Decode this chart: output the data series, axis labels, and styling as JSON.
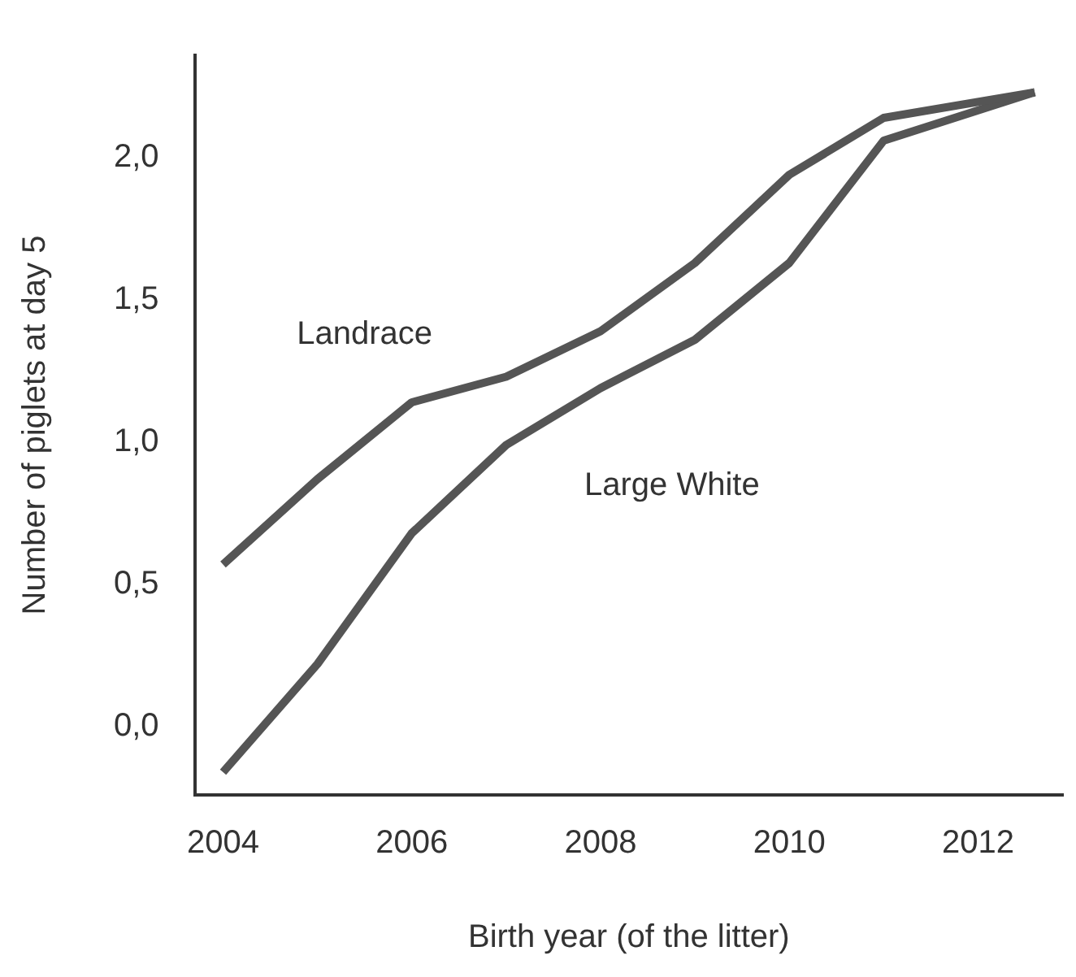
{
  "chart_data": {
    "type": "line",
    "xlabel": "Birth year (of the litter)",
    "ylabel": "Number of piglets at day 5",
    "xlim": [
      2003.7,
      2012.9
    ],
    "xticks": [
      2004,
      2006,
      2008,
      2010,
      2012
    ],
    "ylim": [
      -0.24,
      2.36
    ],
    "yticks": [
      {
        "value": 0,
        "label": "0,0"
      },
      {
        "value": 0.5,
        "label": "0,5"
      },
      {
        "value": 1,
        "label": "1,0"
      },
      {
        "value": 1.5,
        "label": "1,5"
      },
      {
        "value": 2,
        "label": "2,0"
      }
    ],
    "grid": false,
    "legend": false,
    "marker": "none",
    "line_style": "solid",
    "series": [
      {
        "name": "Landrace",
        "color": "#555555",
        "x": [
          2004,
          2005,
          2006,
          2007,
          2008,
          2009,
          2010,
          2011,
          2012.6
        ],
        "values": [
          0.57,
          0.87,
          1.14,
          1.23,
          1.39,
          1.63,
          1.94,
          2.14,
          2.23
        ]
      },
      {
        "name": "Large White",
        "color": "#555555",
        "x": [
          2004,
          2005,
          2006,
          2007,
          2008,
          2009,
          2010,
          2011,
          2012.6
        ],
        "values": [
          -0.16,
          0.22,
          0.68,
          0.99,
          1.19,
          1.36,
          1.63,
          2.06,
          2.23
        ]
      }
    ]
  }
}
